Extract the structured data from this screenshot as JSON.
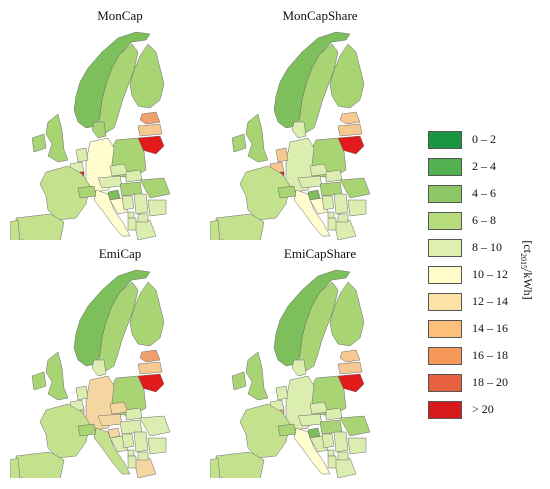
{
  "panels": [
    {
      "title": "MonCap",
      "colors": {
        "norway": "#7dbf5a",
        "sweden": "#a8d474",
        "finland": "#a8d474",
        "estonia": "#f0a06a",
        "latvia": "#f5c98f",
        "lithuania": "#e31a1c",
        "poland": "#a8d474",
        "germany": "#fffccf",
        "denmark": "#a8d474",
        "netherlands": "#dcedb0",
        "belgium": "#dcedb0",
        "luxembourg": "#e31a1c",
        "france": "#c4e28e",
        "uk": "#a8d474",
        "ireland": "#a8d474",
        "spain": "#c4e28e",
        "portugal": "#c4e28e",
        "italy": "#fffccf",
        "switzerland": "#a8d474",
        "austria": "#dcedb0",
        "czech": "#dcedb0",
        "slovakia": "#dcedb0",
        "hungary": "#a8d474",
        "slovenia": "#7dbf5a",
        "croatia": "#fffccf",
        "bosnia": "#dcedb0",
        "serbia": "#dcedb0",
        "romania": "#a8d474",
        "bulgaria": "#dcedb0",
        "greece": "#dcedb0",
        "montenegro": "#dcedb0",
        "macedonia": "#dcedb0",
        "albania": "#dcedb0"
      }
    },
    {
      "title": "MonCapShare",
      "colors": {
        "norway": "#7dbf5a",
        "sweden": "#a8d474",
        "finland": "#a8d474",
        "estonia": "#f5c98f",
        "latvia": "#f5c98f",
        "lithuania": "#e31a1c",
        "poland": "#a8d474",
        "germany": "#dcedb0",
        "denmark": "#dcedb0",
        "netherlands": "#f5c98f",
        "belgium": "#f5c98f",
        "luxembourg": "#e31a1c",
        "france": "#c4e28e",
        "uk": "#a8d474",
        "ireland": "#a8d474",
        "spain": "#c4e28e",
        "portugal": "#c4e28e",
        "italy": "#fffccf",
        "switzerland": "#a8d474",
        "austria": "#dcedb0",
        "czech": "#dcedb0",
        "slovakia": "#dcedb0",
        "hungary": "#a8d474",
        "slovenia": "#7dbf5a",
        "croatia": "#fffccf",
        "bosnia": "#dcedb0",
        "serbia": "#dcedb0",
        "romania": "#a8d474",
        "bulgaria": "#dcedb0",
        "greece": "#dcedb0",
        "montenegro": "#dcedb0",
        "macedonia": "#dcedb0",
        "albania": "#dcedb0"
      }
    },
    {
      "title": "EmiCap",
      "colors": {
        "norway": "#7dbf5a",
        "sweden": "#a8d474",
        "finland": "#a8d474",
        "estonia": "#f0a06a",
        "latvia": "#f5c98f",
        "lithuania": "#e31a1c",
        "poland": "#a8d474",
        "germany": "#f5d6a0",
        "denmark": "#dcedb0",
        "netherlands": "#dcedb0",
        "belgium": "#dcedb0",
        "luxembourg": "#f5c98f",
        "france": "#c4e28e",
        "uk": "#a8d474",
        "ireland": "#a8d474",
        "spain": "#c4e28e",
        "portugal": "#c4e28e",
        "italy": "#c4e28e",
        "switzerland": "#a8d474",
        "austria": "#f5d6a0",
        "czech": "#f5d6a0",
        "slovakia": "#dcedb0",
        "hungary": "#dcedb0",
        "slovenia": "#f5d6a0",
        "croatia": "#dcedb0",
        "bosnia": "#dcedb0",
        "serbia": "#dcedb0",
        "romania": "#dcedb0",
        "bulgaria": "#dcedb0",
        "greece": "#f5d6a0",
        "montenegro": "#dcedb0",
        "macedonia": "#dcedb0",
        "albania": "#dcedb0"
      }
    },
    {
      "title": "EmiCapShare",
      "colors": {
        "norway": "#7dbf5a",
        "sweden": "#a8d474",
        "finland": "#a8d474",
        "estonia": "#f5c98f",
        "latvia": "#f5c98f",
        "lithuania": "#e31a1c",
        "poland": "#a8d474",
        "germany": "#dcedb0",
        "denmark": "#dcedb0",
        "netherlands": "#dcedb0",
        "belgium": "#dcedb0",
        "luxembourg": "#f0a06a",
        "france": "#c4e28e",
        "uk": "#a8d474",
        "ireland": "#a8d474",
        "spain": "#c4e28e",
        "portugal": "#c4e28e",
        "italy": "#fffccf",
        "switzerland": "#a8d474",
        "austria": "#dcedb0",
        "czech": "#dcedb0",
        "slovakia": "#dcedb0",
        "hungary": "#a8d474",
        "slovenia": "#7dbf5a",
        "croatia": "#dcedb0",
        "bosnia": "#dcedb0",
        "serbia": "#dcedb0",
        "romania": "#a8d474",
        "bulgaria": "#dcedb0",
        "greece": "#dcedb0",
        "montenegro": "#dcedb0",
        "macedonia": "#dcedb0",
        "albania": "#dcedb0"
      }
    }
  ],
  "legend": {
    "items": [
      {
        "label": "0 – 2",
        "color": "#1a9641"
      },
      {
        "label": "2 – 4",
        "color": "#52b151"
      },
      {
        "label": "4 – 6",
        "color": "#8cc865"
      },
      {
        "label": "6 – 8",
        "color": "#b8dd7c"
      },
      {
        "label": "8 – 10",
        "color": "#e0efb0"
      },
      {
        "label": "10 – 12",
        "color": "#fffcc9"
      },
      {
        "label": "12 – 14",
        "color": "#fee1a6"
      },
      {
        "label": "14 – 16",
        "color": "#fdbf79"
      },
      {
        "label": "16 – 18",
        "color": "#f59858"
      },
      {
        "label": "18 – 20",
        "color": "#e8613f"
      },
      {
        "label": "> 20",
        "color": "#d7191c"
      }
    ],
    "unit_main": "[ct",
    "unit_sub": "2015",
    "unit_tail": "/kWh]"
  }
}
